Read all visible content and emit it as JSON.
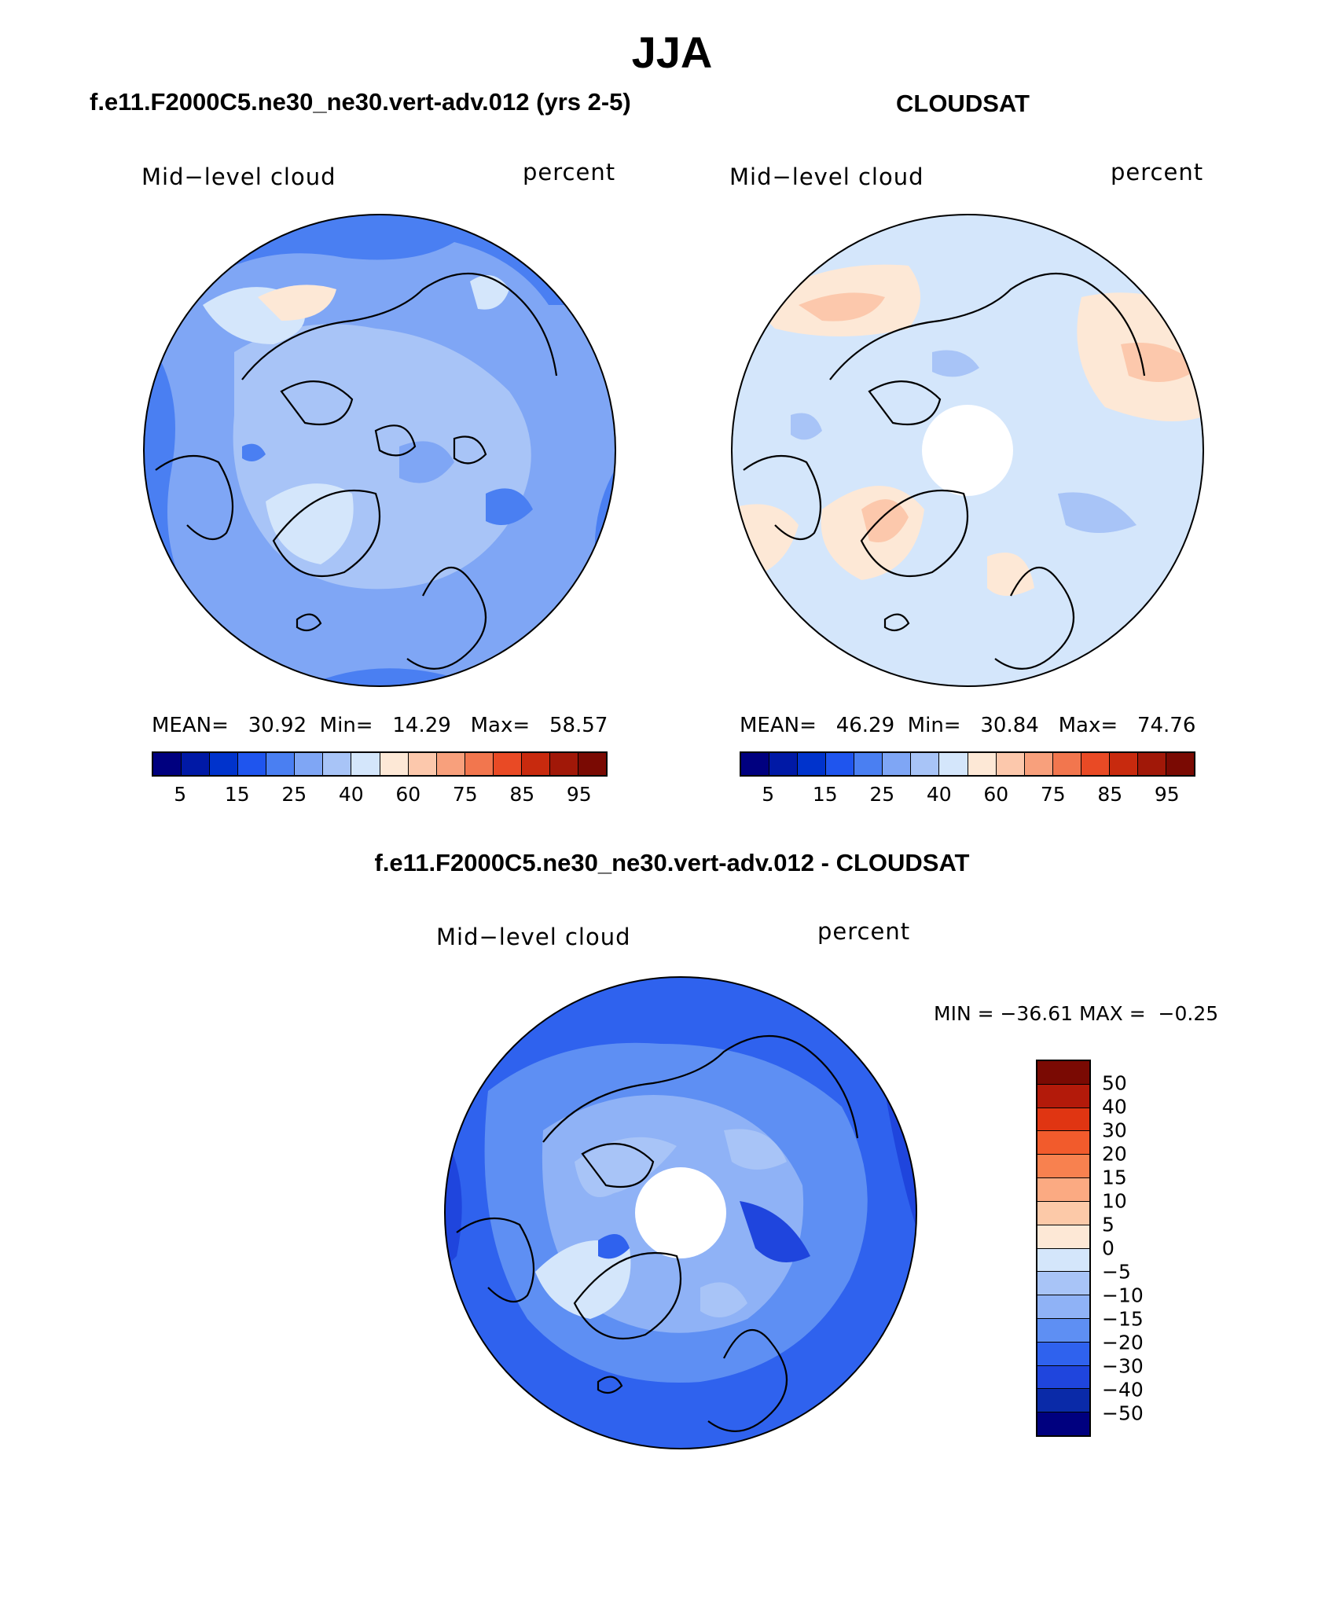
{
  "title": "JJA",
  "panels": {
    "model": {
      "header": "f.e11.F2000C5.ne30_ne30.vert-adv.012 (yrs 2-5)",
      "left_label": "Mid−level cloud",
      "right_label": "percent",
      "mean_label": "MEAN=",
      "mean": "30.92",
      "min_label": "Min=",
      "min": "14.29",
      "max_label": "Max=",
      "max": "58.57"
    },
    "obs": {
      "header": "CLOUDSAT",
      "left_label": "Mid−level cloud",
      "right_label": "percent",
      "mean_label": "MEAN=",
      "mean": "46.29",
      "min_label": "Min=",
      "min": "30.84",
      "max_label": "Max=",
      "max": "74.76"
    },
    "diff": {
      "header": "f.e11.F2000C5.ne30_ne30.vert-adv.012 - CLOUDSAT",
      "left_label": "Mid−level cloud",
      "right_label": "percent",
      "range_text": "MIN = −36.61 MAX =  −0.25"
    }
  },
  "colorbar_abs": {
    "colors": [
      "#00007f",
      "#0019a6",
      "#0033cc",
      "#1f55ee",
      "#4a7ff2",
      "#7fa6f5",
      "#a8c4f7",
      "#d4e6fb",
      "#fde8d6",
      "#fcc8ac",
      "#f8a07c",
      "#f2764e",
      "#e94a25",
      "#c82a0e",
      "#a11808",
      "#7a0a03"
    ],
    "tick_labels": [
      "5",
      "15",
      "25",
      "40",
      "60",
      "75",
      "85",
      "95"
    ]
  },
  "colorbar_diff": {
    "colors": [
      "#7a0a03",
      "#b31a0a",
      "#e03512",
      "#f25b2c",
      "#f8814f",
      "#fbaa82",
      "#fcc9a8",
      "#fde8d6",
      "#d4e6fb",
      "#a8c4f7",
      "#8fb2f6",
      "#5e8ff3",
      "#2f62ee",
      "#1f45dd",
      "#0a2aa8",
      "#00007f"
    ],
    "tick_labels": [
      "50",
      "40",
      "30",
      "20",
      "15",
      "10",
      "5",
      "0",
      "−5",
      "−10",
      "−15",
      "−20",
      "−30",
      "−40",
      "−50"
    ]
  }
}
